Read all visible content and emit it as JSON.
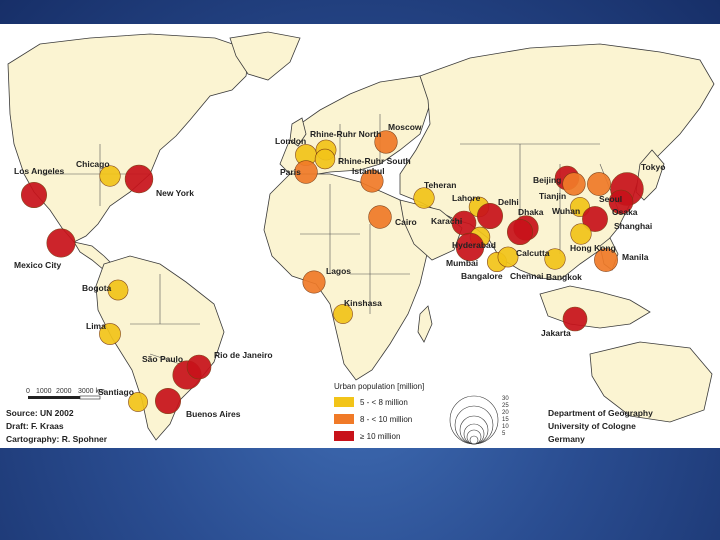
{
  "categories": [
    {
      "key": "c1",
      "label": "5 - < 8 million",
      "color": "#f2c419"
    },
    {
      "key": "c2",
      "label": "8 - < 10 million",
      "color": "#f07a28"
    },
    {
      "key": "c3",
      "label": "≥ 10 million",
      "color": "#c8121a"
    }
  ],
  "legend": {
    "title": "Urban population [million]",
    "size_values": [
      "30",
      "25",
      "20",
      "15",
      "10",
      "5"
    ]
  },
  "cities": [
    {
      "name": "Los Angeles",
      "cat": "c3",
      "pop": 13
    },
    {
      "name": "Chicago",
      "cat": "c1",
      "pop": 7
    },
    {
      "name": "New York",
      "cat": "c3",
      "pop": 17
    },
    {
      "name": "Mexico City",
      "cat": "c3",
      "pop": 18
    },
    {
      "name": "Bogota",
      "cat": "c1",
      "pop": 6.5
    },
    {
      "name": "Lima",
      "cat": "c1",
      "pop": 7.5
    },
    {
      "name": "São Paulo",
      "cat": "c3",
      "pop": 18
    },
    {
      "name": "Rio de Janeiro",
      "cat": "c3",
      "pop": 11
    },
    {
      "name": "Santiago",
      "cat": "c1",
      "pop": 5.5
    },
    {
      "name": "Buenos Aires",
      "cat": "c3",
      "pop": 13
    },
    {
      "name": "London",
      "cat": "c1",
      "pop": 7.5
    },
    {
      "name": "Paris",
      "cat": "c2",
      "pop": 9.6
    },
    {
      "name": "Rhine-Ruhr North",
      "cat": "c1",
      "pop": 6.5
    },
    {
      "name": "Rhine-Ruhr South",
      "cat": "c1",
      "pop": 6
    },
    {
      "name": "Moscow",
      "cat": "c2",
      "pop": 9.3
    },
    {
      "name": "Istanbul",
      "cat": "c2",
      "pop": 9
    },
    {
      "name": "Teheran",
      "cat": "c1",
      "pop": 7
    },
    {
      "name": "Cairo",
      "cat": "c2",
      "pop": 9.5
    },
    {
      "name": "Lagos",
      "cat": "c2",
      "pop": 9
    },
    {
      "name": "Kinshasa",
      "cat": "c1",
      "pop": 5.5
    },
    {
      "name": "Lahore",
      "cat": "c1",
      "pop": 6
    },
    {
      "name": "Delhi",
      "cat": "c3",
      "pop": 13
    },
    {
      "name": "Karachi",
      "cat": "c3",
      "pop": 11
    },
    {
      "name": "Dhaka",
      "cat": "c3",
      "pop": 12
    },
    {
      "name": "Hyderabad",
      "cat": "c1",
      "pop": 6
    },
    {
      "name": "Mumbai",
      "cat": "c3",
      "pop": 17
    },
    {
      "name": "Bangalore",
      "cat": "c1",
      "pop": 5.6
    },
    {
      "name": "Chennai",
      "cat": "c1",
      "pop": 6.5
    },
    {
      "name": "Calcutta",
      "cat": "c3",
      "pop": 13
    },
    {
      "name": "Bangkok",
      "cat": "c1",
      "pop": 7
    },
    {
      "name": "Beijing",
      "cat": "c3",
      "pop": 10.8
    },
    {
      "name": "Tianjin",
      "cat": "c2",
      "pop": 9.2
    },
    {
      "name": "Seoul",
      "cat": "c2",
      "pop": 9.9
    },
    {
      "name": "Tokyo",
      "cat": "c3",
      "pop": 26.5
    },
    {
      "name": "Osaka",
      "cat": "c3",
      "pop": 11
    },
    {
      "name": "Wuhan",
      "cat": "c1",
      "pop": 5.5
    },
    {
      "name": "Shanghai",
      "cat": "c3",
      "pop": 12.8
    },
    {
      "name": "Hong Kong",
      "cat": "c1",
      "pop": 7
    },
    {
      "name": "Manila",
      "cat": "c2",
      "pop": 9.9
    },
    {
      "name": "Jakarta",
      "cat": "c3",
      "pop": 11
    }
  ],
  "scale_labels": [
    "0",
    "1000",
    "2000",
    "3000 km"
  ],
  "credits": {
    "source": "Source: UN 2002",
    "draft": "Draft: F. Kraas",
    "cartography": "Cartography: R. Spohner"
  },
  "institution": {
    "line1": "Department of Geography",
    "line2": "University of Cologne",
    "line3": "Germany"
  }
}
